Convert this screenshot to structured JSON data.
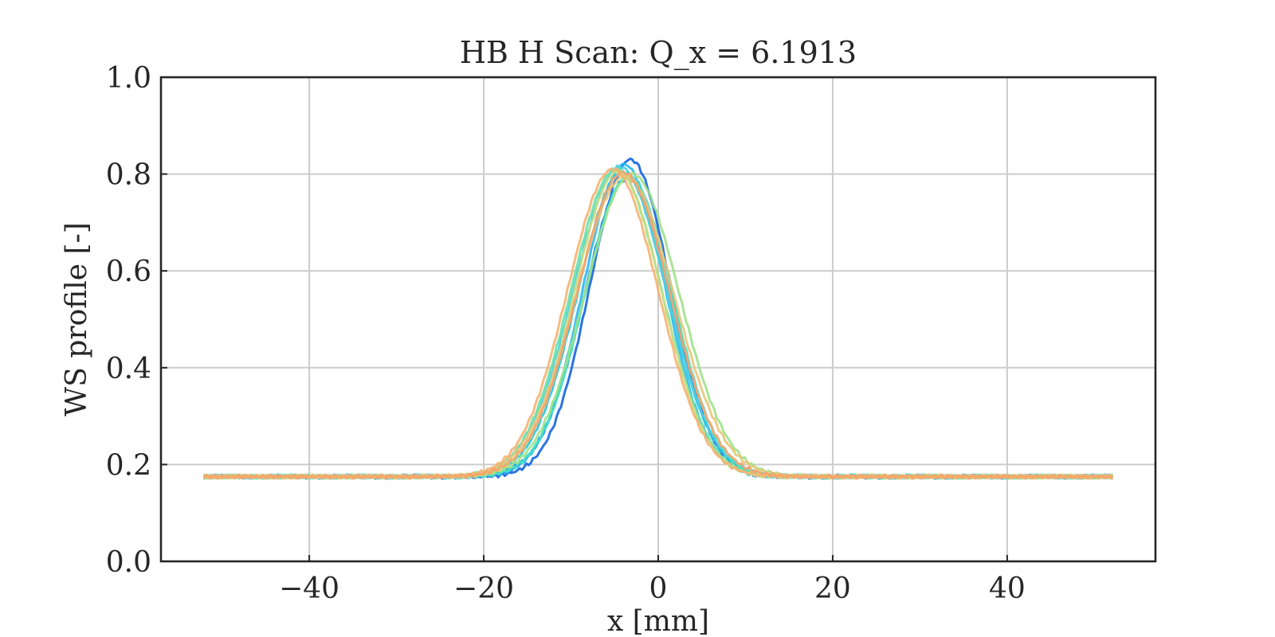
{
  "chart_data": {
    "type": "line",
    "title": "HB H Scan: Q_x = 6.1913",
    "xlabel": "x [mm]",
    "ylabel": "WS profile [-]",
    "xlim": [
      -57,
      57
    ],
    "ylim": [
      0.0,
      1.0
    ],
    "xticks": [
      -40,
      -20,
      0,
      20,
      40
    ],
    "xtick_labels": [
      "−40",
      "−20",
      "0",
      "20",
      "40"
    ],
    "yticks": [
      0.0,
      0.2,
      0.4,
      0.6,
      0.8,
      1.0
    ],
    "ytick_labels": [
      "0.0",
      "0.2",
      "0.4",
      "0.6",
      "0.8",
      "1.0"
    ],
    "grid": true,
    "legend": "none",
    "x_range": [
      -52,
      52
    ],
    "baseline": 0.175,
    "series": [
      {
        "color": "#1565e0",
        "center": -3.2,
        "amplitude": 0.655,
        "sigma": 4.6
      },
      {
        "color": "#1e88e5",
        "center": -3.6,
        "amplitude": 0.615,
        "sigma": 4.9
      },
      {
        "color": "#29b6f6",
        "center": -3.9,
        "amplitude": 0.645,
        "sigma": 4.7
      },
      {
        "color": "#26c6da",
        "center": -4.1,
        "amplitude": 0.63,
        "sigma": 5.1
      },
      {
        "color": "#4dd0e1",
        "center": -4.4,
        "amplitude": 0.64,
        "sigma": 5.3
      },
      {
        "color": "#48e3c1",
        "center": -3.4,
        "amplitude": 0.62,
        "sigma": 5.0
      },
      {
        "color": "#69e0a8",
        "center": -4.8,
        "amplitude": 0.635,
        "sigma": 5.2
      },
      {
        "color": "#9ee28a",
        "center": -3.0,
        "amplitude": 0.625,
        "sigma": 5.4
      },
      {
        "color": "#c9dd7f",
        "center": -4.6,
        "amplitude": 0.63,
        "sigma": 5.0
      },
      {
        "color": "#e8c77a",
        "center": -3.8,
        "amplitude": 0.62,
        "sigma": 5.6
      },
      {
        "color": "#f5b272",
        "center": -5.2,
        "amplitude": 0.635,
        "sigma": 5.2
      },
      {
        "color": "#f7a36b",
        "center": -4.0,
        "amplitude": 0.628,
        "sigma": 5.3
      }
    ]
  }
}
